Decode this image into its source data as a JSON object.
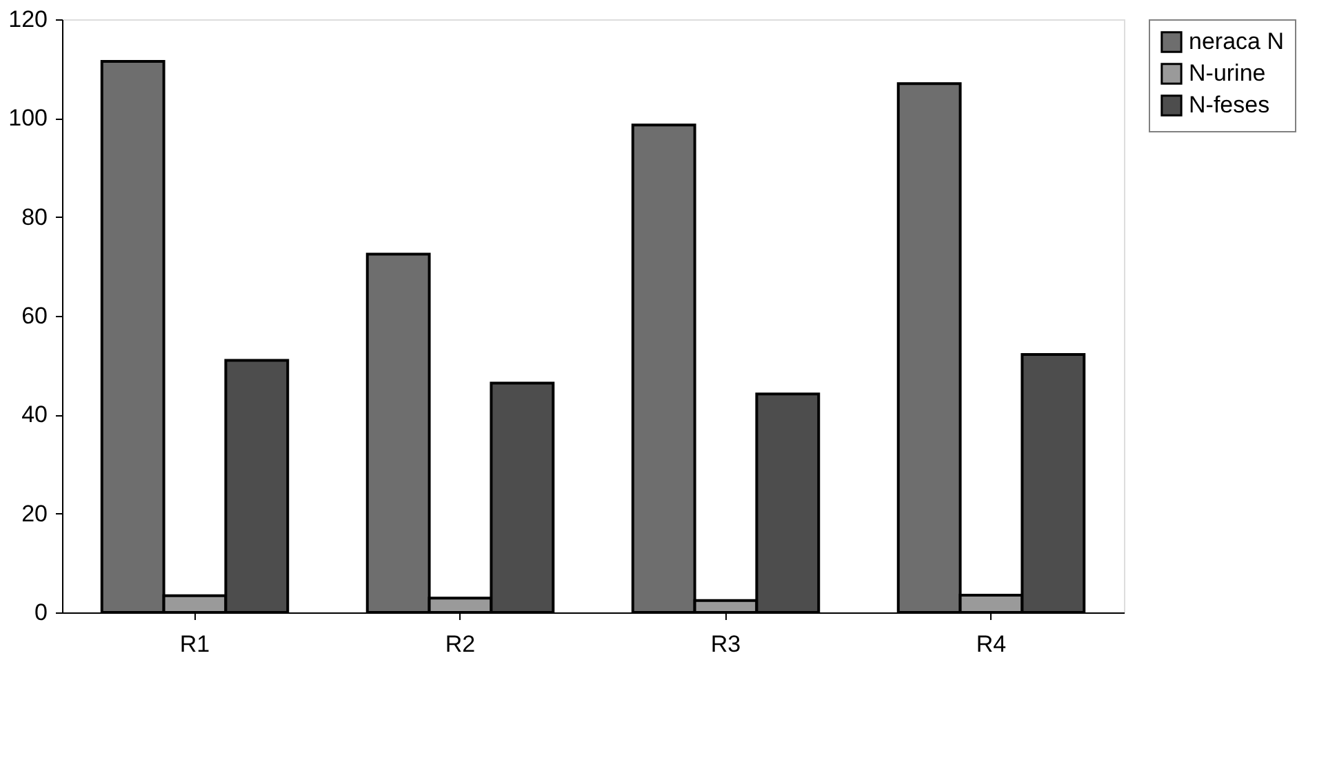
{
  "chart_data": {
    "type": "bar",
    "categories": [
      "R1",
      "R2",
      "R3",
      "R4"
    ],
    "series": [
      {
        "name": "neraca N",
        "color": "#6e6e6e",
        "values": [
          111.5,
          72.5,
          98.6,
          107
        ]
      },
      {
        "name": "N-urine",
        "color": "#9a9a9a",
        "values": [
          3.4,
          2.9,
          2.4,
          3.5
        ]
      },
      {
        "name": "N-feses",
        "color": "#4d4d4d",
        "values": [
          51,
          46.4,
          44.2,
          52.2
        ]
      }
    ],
    "ylim": [
      0,
      120
    ],
    "yticks": [
      0,
      20,
      40,
      60,
      80,
      100,
      120
    ],
    "grid": false,
    "legend": "right"
  }
}
